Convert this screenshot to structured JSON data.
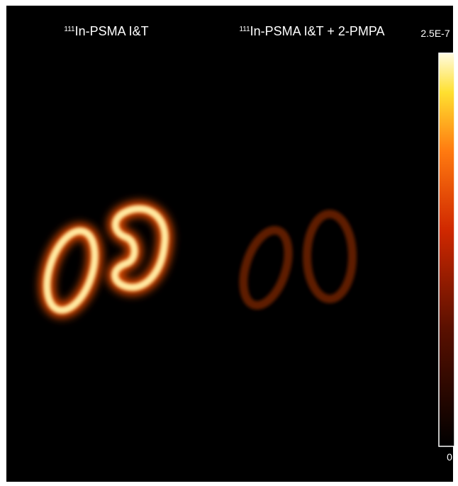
{
  "panels": [
    {
      "isotope": "111",
      "label": "In-PSMA I&T"
    },
    {
      "isotope": "111",
      "label": "In-PSMA I&T + 2-PMPA"
    }
  ],
  "colorbar": {
    "max_label": "2.5E-7",
    "min_label": "0"
  }
}
